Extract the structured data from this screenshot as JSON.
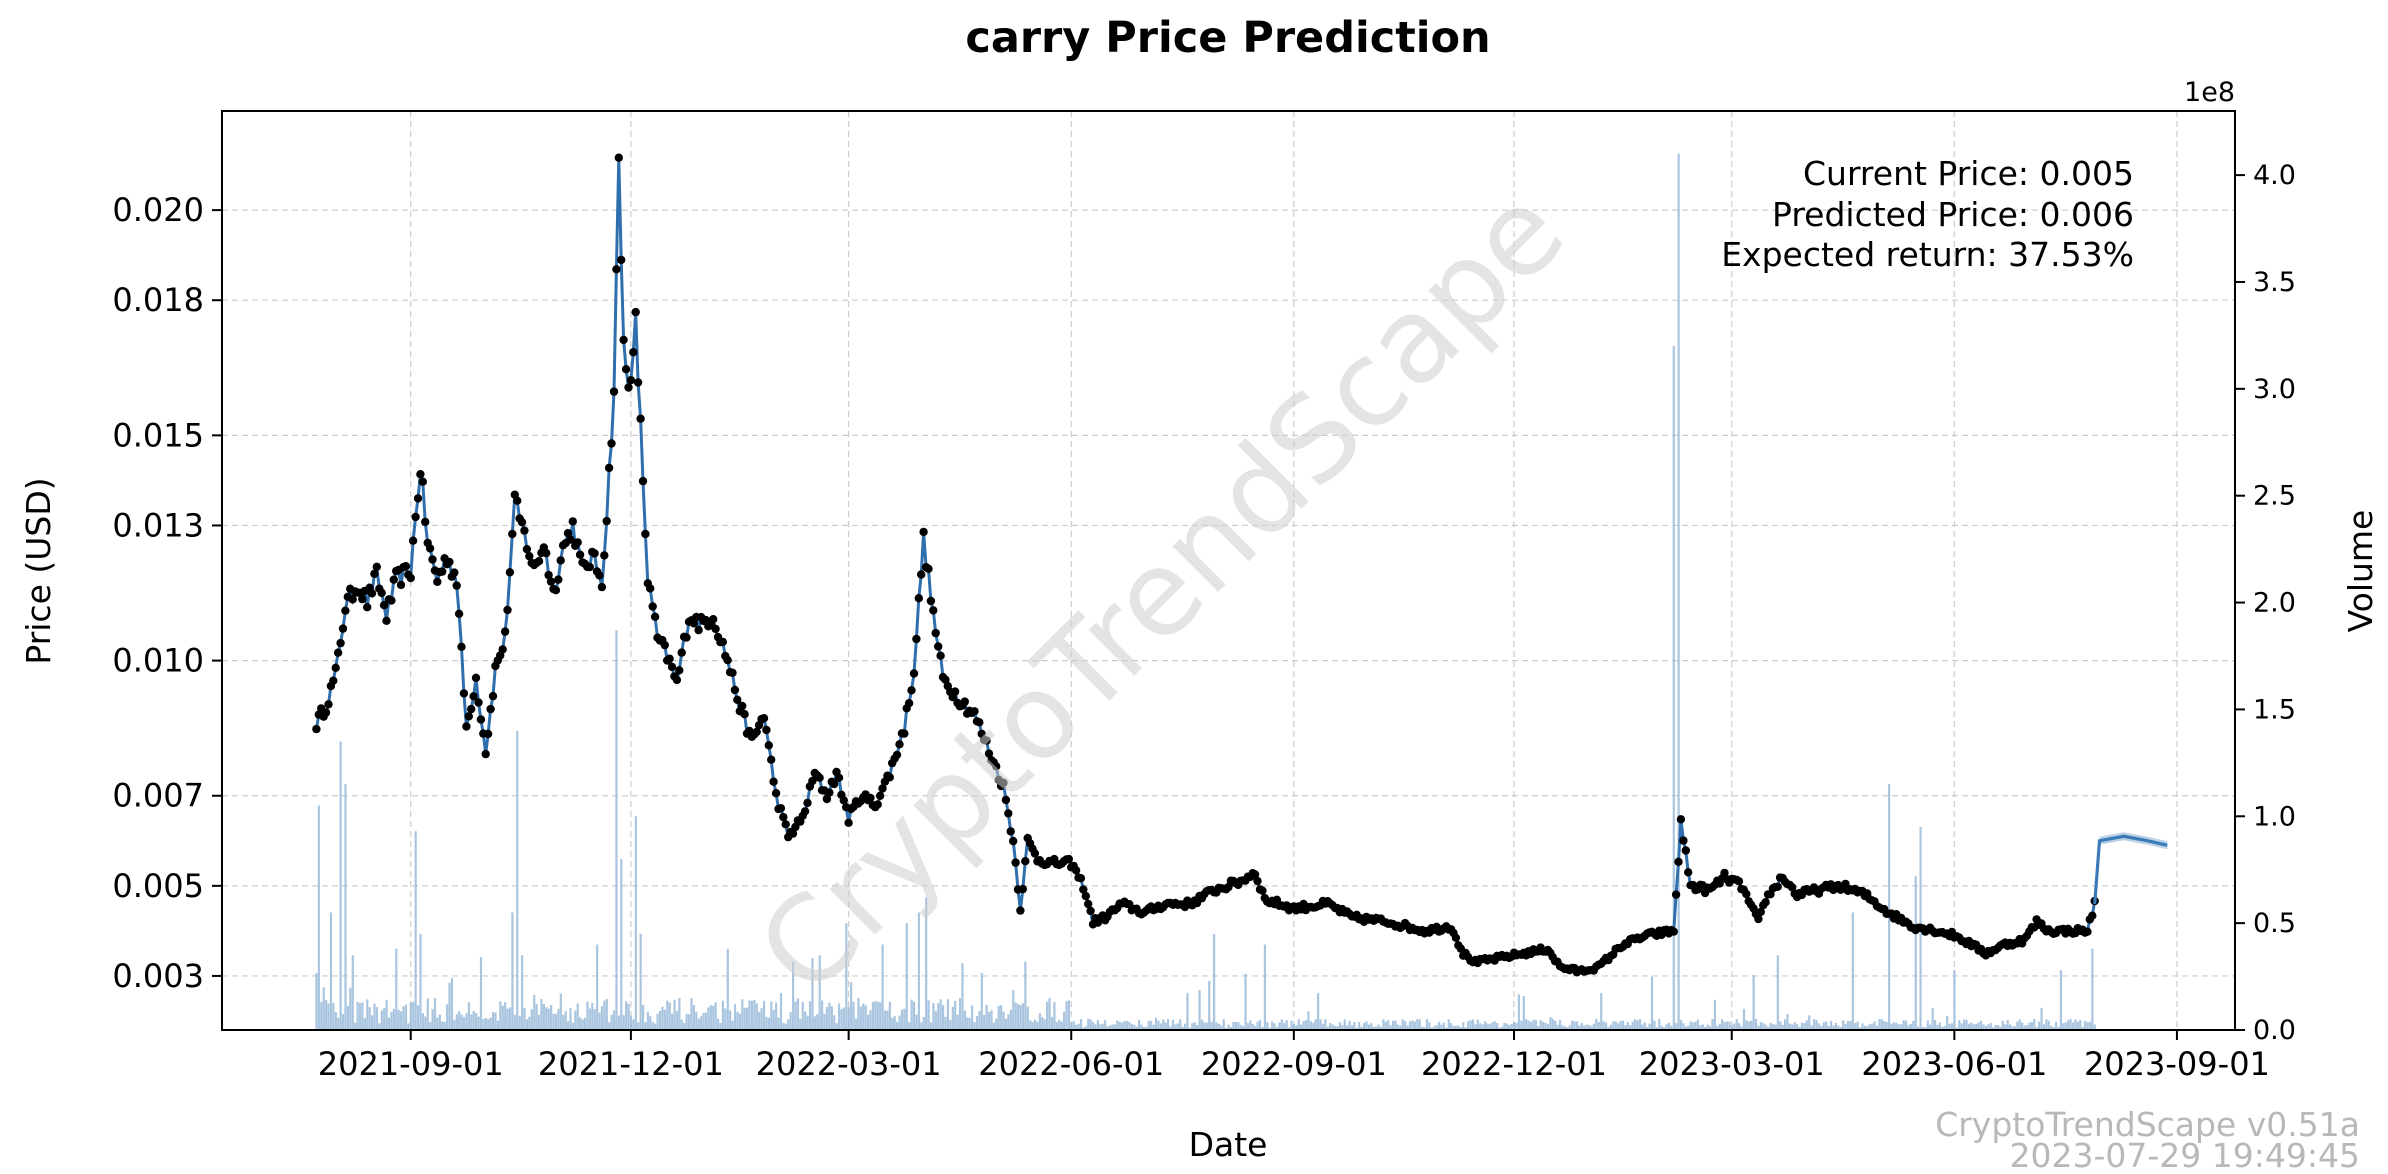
{
  "chart_data": {
    "type": "line",
    "title": "carry Price Prediction",
    "xlabel": "Date",
    "ylabel": "Price (USD)",
    "y2label": "Volume",
    "y2_scale_label": "1e8",
    "ylim": [
      0.0018,
      0.0222
    ],
    "y2lim": [
      0,
      4.3
    ],
    "xlim": [
      "2021-06-15",
      "2023-09-25"
    ],
    "grid": true,
    "yticks": [
      {
        "value": 0.003,
        "label": "0.003"
      },
      {
        "value": 0.005,
        "label": "0.005"
      },
      {
        "value": 0.007,
        "label": "0.007"
      },
      {
        "value": 0.01,
        "label": "0.010"
      },
      {
        "value": 0.013,
        "label": "0.013"
      },
      {
        "value": 0.015,
        "label": "0.015"
      },
      {
        "value": 0.018,
        "label": "0.018"
      },
      {
        "value": 0.02,
        "label": "0.020"
      }
    ],
    "y2ticks": [
      {
        "value": 0.0,
        "label": "0.0"
      },
      {
        "value": 0.5,
        "label": "0.5"
      },
      {
        "value": 1.0,
        "label": "1.0"
      },
      {
        "value": 1.5,
        "label": "1.5"
      },
      {
        "value": 2.0,
        "label": "2.0"
      },
      {
        "value": 2.5,
        "label": "2.5"
      },
      {
        "value": 3.0,
        "label": "3.0"
      },
      {
        "value": 3.5,
        "label": "3.5"
      },
      {
        "value": 4.0,
        "label": "4.0"
      }
    ],
    "xticks": [
      {
        "date": "2021-09-01",
        "label": "2021-09-01"
      },
      {
        "date": "2021-12-01",
        "label": "2021-12-01"
      },
      {
        "date": "2022-03-01",
        "label": "2022-03-01"
      },
      {
        "date": "2022-06-01",
        "label": "2022-06-01"
      },
      {
        "date": "2022-09-01",
        "label": "2022-09-01"
      },
      {
        "date": "2022-12-01",
        "label": "2022-12-01"
      },
      {
        "date": "2023-03-01",
        "label": "2023-03-01"
      },
      {
        "date": "2023-06-01",
        "label": "2023-06-01"
      },
      {
        "date": "2023-09-01",
        "label": "2023-09-01"
      }
    ],
    "price_keypoints": [
      [
        "2021-07-24",
        0.0086
      ],
      [
        "2021-07-28",
        0.009
      ],
      [
        "2021-08-01",
        0.0097
      ],
      [
        "2021-08-05",
        0.0112
      ],
      [
        "2021-08-10",
        0.0117
      ],
      [
        "2021-08-14",
        0.0113
      ],
      [
        "2021-08-18",
        0.0119
      ],
      [
        "2021-08-22",
        0.011
      ],
      [
        "2021-08-26",
        0.0118
      ],
      [
        "2021-09-01",
        0.012
      ],
      [
        "2021-09-05",
        0.0143
      ],
      [
        "2021-09-08",
        0.0126
      ],
      [
        "2021-09-12",
        0.0118
      ],
      [
        "2021-09-16",
        0.0123
      ],
      [
        "2021-09-20",
        0.0118
      ],
      [
        "2021-09-24",
        0.0085
      ],
      [
        "2021-09-28",
        0.0096
      ],
      [
        "2021-10-02",
        0.008
      ],
      [
        "2021-10-06",
        0.0098
      ],
      [
        "2021-10-10",
        0.0105
      ],
      [
        "2021-10-14",
        0.0135
      ],
      [
        "2021-10-18",
        0.0128
      ],
      [
        "2021-10-22",
        0.012
      ],
      [
        "2021-10-26",
        0.0126
      ],
      [
        "2021-10-30",
        0.0115
      ],
      [
        "2021-11-03",
        0.0125
      ],
      [
        "2021-11-07",
        0.013
      ],
      [
        "2021-11-11",
        0.012
      ],
      [
        "2021-11-15",
        0.0123
      ],
      [
        "2021-11-19",
        0.0118
      ],
      [
        "2021-11-21",
        0.0132
      ],
      [
        "2021-11-24",
        0.016
      ],
      [
        "2021-11-26",
        0.021
      ],
      [
        "2021-11-28",
        0.017
      ],
      [
        "2021-12-01",
        0.016
      ],
      [
        "2021-12-03",
        0.0175
      ],
      [
        "2021-12-06",
        0.014
      ],
      [
        "2021-12-08",
        0.0118
      ],
      [
        "2021-12-12",
        0.0105
      ],
      [
        "2021-12-16",
        0.0101
      ],
      [
        "2021-12-20",
        0.0095
      ],
      [
        "2021-12-25",
        0.011
      ],
      [
        "2021-12-30",
        0.0108
      ],
      [
        "2022-01-04",
        0.011
      ],
      [
        "2022-01-10",
        0.01
      ],
      [
        "2022-01-15",
        0.009
      ],
      [
        "2022-01-20",
        0.0082
      ],
      [
        "2022-01-25",
        0.0088
      ],
      [
        "2022-01-30",
        0.007
      ],
      [
        "2022-02-04",
        0.0061
      ],
      [
        "2022-02-10",
        0.0065
      ],
      [
        "2022-02-15",
        0.0075
      ],
      [
        "2022-02-20",
        0.007
      ],
      [
        "2022-02-24",
        0.0075
      ],
      [
        "2022-03-01",
        0.0065
      ],
      [
        "2022-03-06",
        0.007
      ],
      [
        "2022-03-12",
        0.0068
      ],
      [
        "2022-03-18",
        0.0075
      ],
      [
        "2022-03-24",
        0.0085
      ],
      [
        "2022-03-28",
        0.0098
      ],
      [
        "2022-04-01",
        0.0127
      ],
      [
        "2022-04-05",
        0.011
      ],
      [
        "2022-04-09",
        0.0096
      ],
      [
        "2022-04-15",
        0.0092
      ],
      [
        "2022-04-22",
        0.0088
      ],
      [
        "2022-04-28",
        0.008
      ],
      [
        "2022-05-04",
        0.0072
      ],
      [
        "2022-05-08",
        0.006
      ],
      [
        "2022-05-11",
        0.0045
      ],
      [
        "2022-05-14",
        0.006
      ],
      [
        "2022-05-18",
        0.0056
      ],
      [
        "2022-05-24",
        0.0055
      ],
      [
        "2022-06-01",
        0.0055
      ],
      [
        "2022-06-06",
        0.005
      ],
      [
        "2022-06-10",
        0.0042
      ],
      [
        "2022-06-15",
        0.0043
      ],
      [
        "2022-06-22",
        0.0046
      ],
      [
        "2022-07-01",
        0.0044
      ],
      [
        "2022-07-10",
        0.0046
      ],
      [
        "2022-07-20",
        0.0046
      ],
      [
        "2022-07-30",
        0.0049
      ],
      [
        "2022-08-10",
        0.0051
      ],
      [
        "2022-08-16",
        0.0053
      ],
      [
        "2022-08-20",
        0.0047
      ],
      [
        "2022-09-01",
        0.0045
      ],
      [
        "2022-09-15",
        0.0046
      ],
      [
        "2022-09-25",
        0.0043
      ],
      [
        "2022-10-10",
        0.0042
      ],
      [
        "2022-10-25",
        0.004
      ],
      [
        "2022-11-05",
        0.0041
      ],
      [
        "2022-11-10",
        0.0035
      ],
      [
        "2022-11-15",
        0.0033
      ],
      [
        "2022-11-25",
        0.0034
      ],
      [
        "2022-12-05",
        0.0035
      ],
      [
        "2022-12-15",
        0.0036
      ],
      [
        "2022-12-20",
        0.0032
      ],
      [
        "2022-12-28",
        0.0031
      ],
      [
        "2023-01-05",
        0.0032
      ],
      [
        "2023-01-15",
        0.0037
      ],
      [
        "2023-01-25",
        0.0039
      ],
      [
        "2023-02-05",
        0.004
      ],
      [
        "2023-02-08",
        0.0064
      ],
      [
        "2023-02-12",
        0.005
      ],
      [
        "2023-02-20",
        0.0049
      ],
      [
        "2023-02-26",
        0.0052
      ],
      [
        "2023-03-05",
        0.005
      ],
      [
        "2023-03-12",
        0.0042
      ],
      [
        "2023-03-15",
        0.0047
      ],
      [
        "2023-03-22",
        0.0052
      ],
      [
        "2023-03-28",
        0.0048
      ],
      [
        "2023-04-05",
        0.0049
      ],
      [
        "2023-04-15",
        0.005
      ],
      [
        "2023-04-25",
        0.0048
      ],
      [
        "2023-05-05",
        0.0044
      ],
      [
        "2023-05-15",
        0.0041
      ],
      [
        "2023-05-25",
        0.004
      ],
      [
        "2023-06-01",
        0.0039
      ],
      [
        "2023-06-08",
        0.0037
      ],
      [
        "2023-06-14",
        0.0035
      ],
      [
        "2023-06-22",
        0.0037
      ],
      [
        "2023-06-30",
        0.0038
      ],
      [
        "2023-07-05",
        0.0042
      ],
      [
        "2023-07-10",
        0.004
      ],
      [
        "2023-07-18",
        0.004
      ],
      [
        "2023-07-26",
        0.004
      ],
      [
        "2023-07-29",
        0.0046
      ]
    ],
    "prediction": [
      [
        "2023-07-29",
        0.0046
      ],
      [
        "2023-07-31",
        0.006
      ],
      [
        "2023-08-10",
        0.0061
      ],
      [
        "2023-08-20",
        0.006
      ],
      [
        "2023-08-28",
        0.0059
      ]
    ],
    "volume_spikes": [
      [
        "2021-07-25",
        1.05
      ],
      [
        "2021-07-30",
        0.55
      ],
      [
        "2021-08-03",
        1.35
      ],
      [
        "2021-08-05",
        1.15
      ],
      [
        "2021-08-08",
        0.35
      ],
      [
        "2021-08-26",
        0.38
      ],
      [
        "2021-09-03",
        0.93
      ],
      [
        "2021-09-05",
        0.45
      ],
      [
        "2021-10-15",
        1.4
      ],
      [
        "2021-10-13",
        0.55
      ],
      [
        "2021-10-17",
        0.35
      ],
      [
        "2021-11-17",
        0.4
      ],
      [
        "2021-11-25",
        1.87
      ],
      [
        "2021-11-27",
        0.8
      ],
      [
        "2021-12-03",
        1.0
      ],
      [
        "2021-12-05",
        0.45
      ],
      [
        "2022-01-10",
        0.38
      ],
      [
        "2022-02-06",
        0.32
      ],
      [
        "2022-02-17",
        0.35
      ],
      [
        "2022-02-28",
        0.5
      ],
      [
        "2022-03-15",
        0.4
      ],
      [
        "2022-03-25",
        0.5
      ],
      [
        "2022-03-30",
        0.55
      ],
      [
        "2022-04-02",
        0.62
      ],
      [
        "2022-05-13",
        0.32
      ],
      [
        "2022-07-30",
        0.45
      ],
      [
        "2022-08-20",
        0.4
      ],
      [
        "2023-02-05",
        3.2
      ],
      [
        "2023-02-07",
        4.1
      ],
      [
        "2023-01-27",
        0.25
      ],
      [
        "2023-03-20",
        0.35
      ],
      [
        "2023-04-20",
        0.55
      ],
      [
        "2023-05-05",
        1.15
      ],
      [
        "2023-05-16",
        0.72
      ],
      [
        "2023-05-18",
        0.95
      ],
      [
        "2023-07-15",
        0.28
      ],
      [
        "2023-07-28",
        0.38
      ]
    ]
  },
  "annotations": {
    "current_price": "Current Price: 0.005",
    "predicted_price": "Predicted Price: 0.006",
    "expected_return": "Expected return: 37.53%"
  },
  "watermark": "CryptoTrendScape",
  "footer": {
    "version": "CryptoTrendScape v0.51a",
    "timestamp": "2023-07-29 19:49:45"
  },
  "colors": {
    "price_line": "#2f6fad",
    "markers": "#000000",
    "volume": "#9bbbd9",
    "prediction": "#3a7ab8",
    "grid": "#cccccc"
  }
}
